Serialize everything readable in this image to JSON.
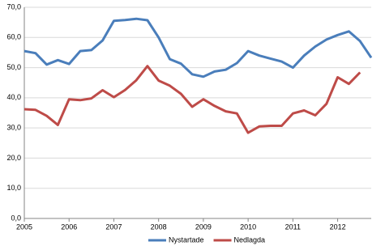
{
  "chart_data": {
    "type": "line",
    "categories": [
      "2005",
      null,
      null,
      null,
      "2006",
      null,
      null,
      null,
      "2007",
      null,
      null,
      null,
      "2008",
      null,
      null,
      null,
      "2009",
      null,
      null,
      null,
      "2010",
      null,
      null,
      null,
      "2011",
      null,
      null,
      null,
      "2012",
      null,
      null,
      null
    ],
    "series": [
      {
        "name": "Nystartade",
        "color": "#4a7ebb",
        "values": [
          55.5,
          54.8,
          51,
          52.5,
          51.2,
          55.5,
          55.8,
          59,
          65.5,
          65.8,
          66.2,
          65.7,
          60,
          52.8,
          51.3,
          47.8,
          47,
          48.7,
          49.3,
          51.5,
          55.5,
          54,
          53,
          52,
          50,
          54,
          57,
          59.3,
          60.8,
          62,
          58.8,
          53.3
        ]
      },
      {
        "name": "Nedlagda",
        "color": "#be4b48",
        "values": [
          36.2,
          36,
          34,
          31,
          39.5,
          39.2,
          39.8,
          42.5,
          40.2,
          42.6,
          45.8,
          50.5,
          45.7,
          44,
          41.3,
          37,
          39.5,
          37.3,
          35.5,
          34.8,
          28.4,
          30.5,
          30.7,
          30.7,
          34.8,
          35.8,
          34.2,
          38,
          46.8,
          44.6,
          48.4,
          null
        ]
      }
    ],
    "ylim": [
      0,
      70
    ],
    "yticks": [
      {
        "value": 0,
        "label": "0,0"
      },
      {
        "value": 10,
        "label": "10,0"
      },
      {
        "value": 20,
        "label": "20,0"
      },
      {
        "value": 30,
        "label": "30,0"
      },
      {
        "value": 40,
        "label": "40,0"
      },
      {
        "value": 50,
        "label": "50,0"
      },
      {
        "value": 60,
        "label": "60,0"
      },
      {
        "value": 70,
        "label": "70,0"
      }
    ],
    "grid": true,
    "legend": "bottom"
  }
}
